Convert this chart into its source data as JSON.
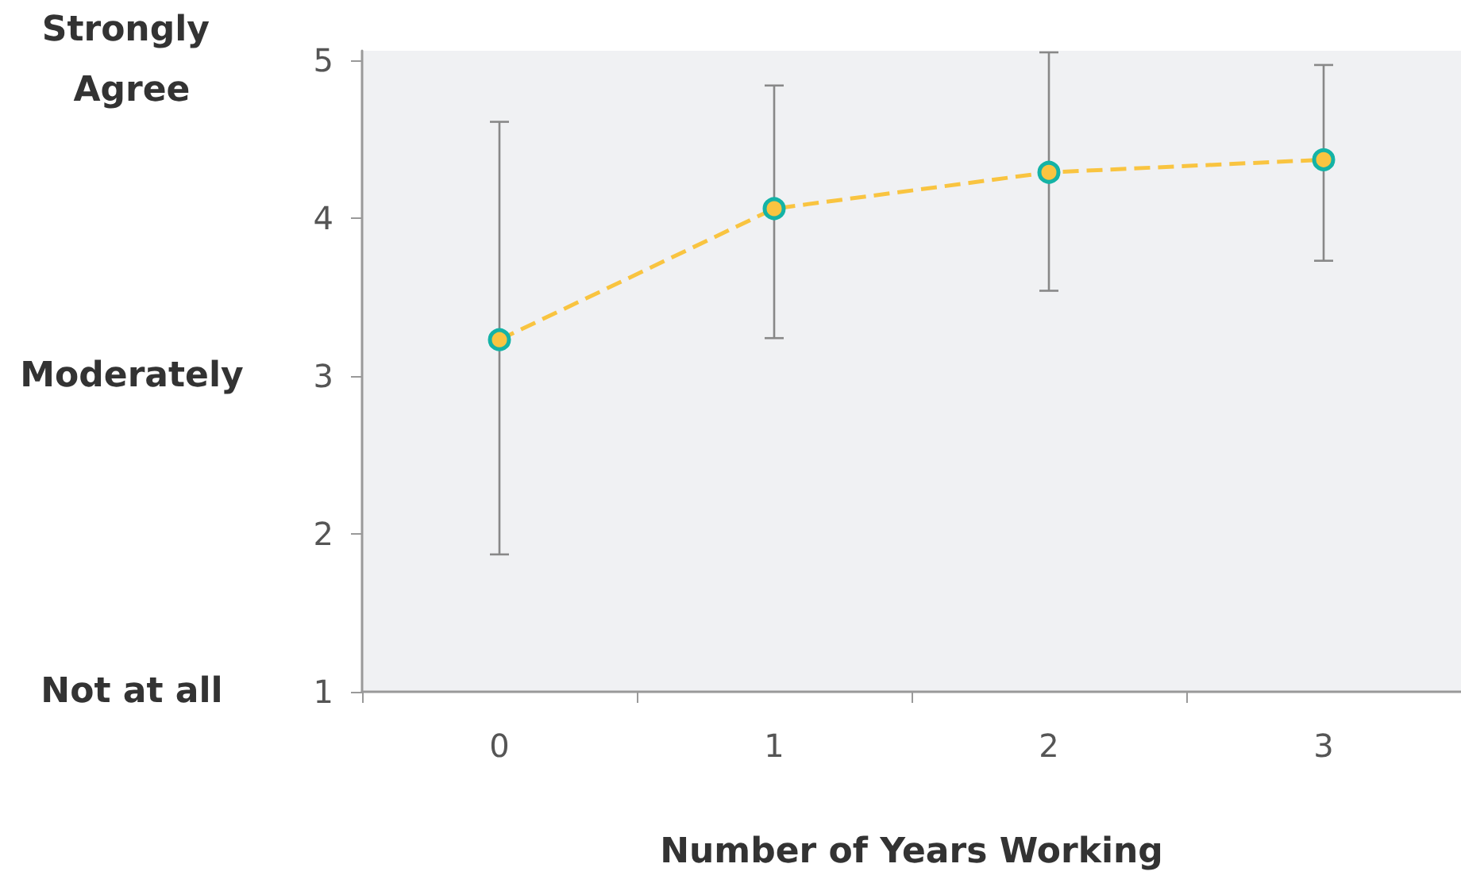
{
  "chart_data": {
    "type": "line",
    "xlabel": "Number of Years Working",
    "categories": [
      "0",
      "1",
      "2",
      "3"
    ],
    "series": [
      {
        "color": "#f9c440",
        "values": [
          3.23,
          4.06,
          4.29,
          4.37
        ],
        "errors": [
          [
            1.87,
            4.61
          ],
          [
            3.24,
            4.84
          ],
          [
            3.54,
            5.05
          ],
          [
            3.73,
            4.97
          ]
        ]
      }
    ],
    "ylim": [
      1,
      5.06
    ],
    "yticks": [
      1,
      2,
      3,
      4,
      5
    ],
    "grid": false,
    "marker": "circle",
    "line_style": "dashed",
    "annotations": [
      "Strongly Agree",
      "Moderately",
      "Not at all"
    ]
  }
}
